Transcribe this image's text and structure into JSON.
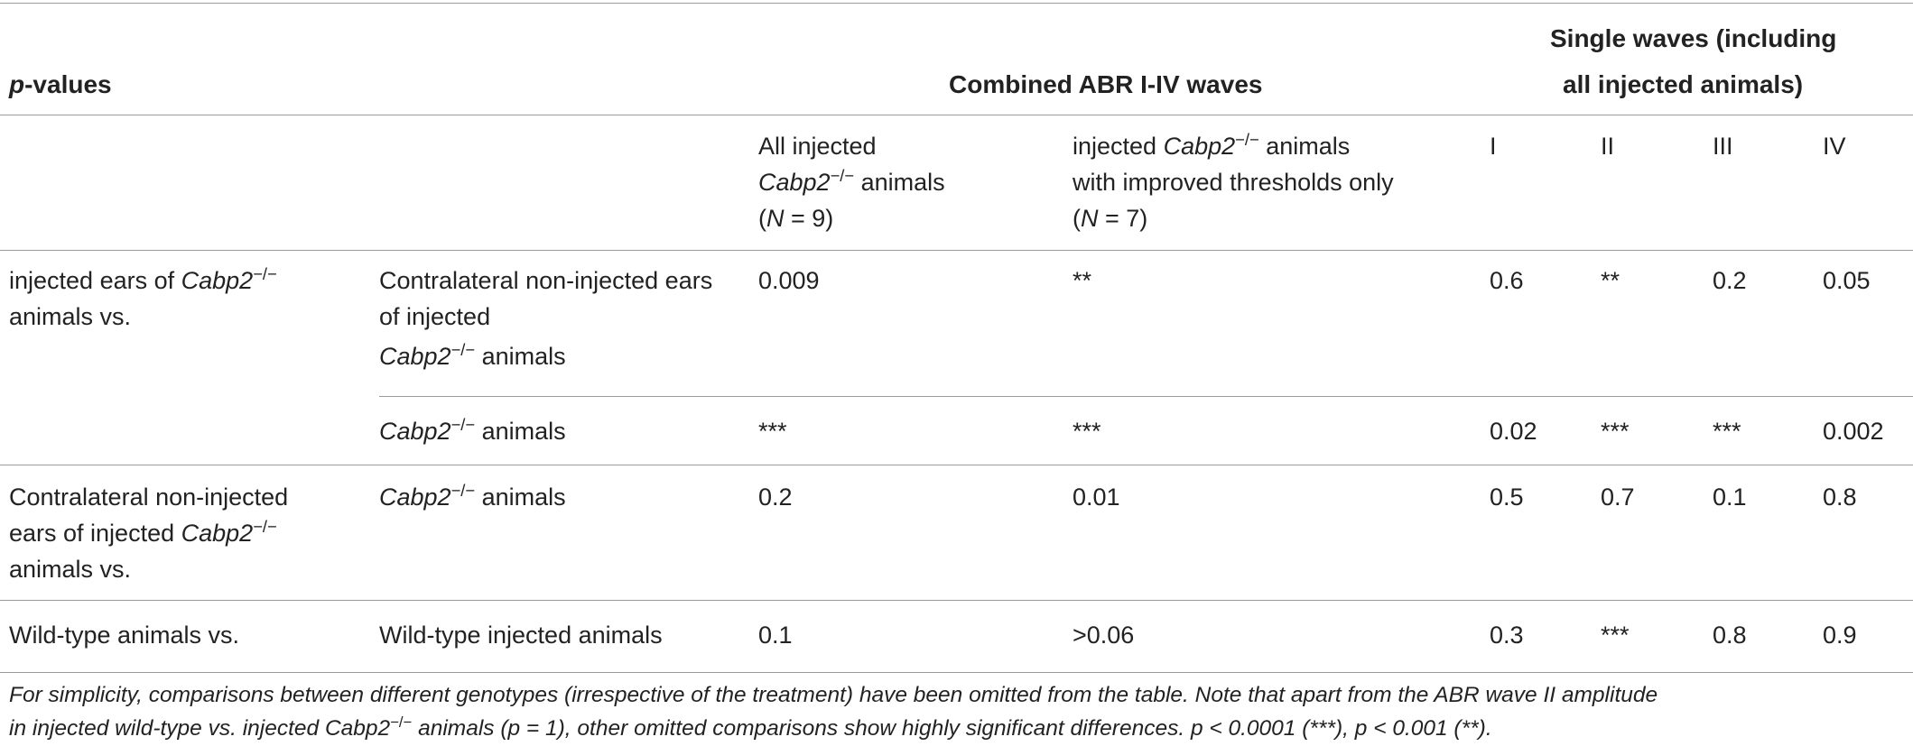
{
  "header": {
    "pvalues_italic": "p",
    "pvalues_rest": "-values",
    "combined": "Combined ABR I-IV waves",
    "single_line1": "Single waves (including",
    "single_line2": "all injected animals)"
  },
  "subheader": {
    "all_injected_l1": "All injected",
    "all_injected_l2_gene": "Cabp2",
    "all_injected_l2_sup": "−/−",
    "all_injected_l2_rest": " animals",
    "all_injected_l3_pre": "(",
    "all_injected_l3_N": "N",
    "all_injected_l3_post": " = 9)",
    "improved_l1_pre": "injected ",
    "improved_l1_gene": "Cabp2",
    "improved_l1_sup": "−/−",
    "improved_l1_rest": " animals",
    "improved_l2": "with improved thresholds only",
    "improved_l3_pre": "(",
    "improved_l3_N": "N",
    "improved_l3_post": " = 7)",
    "wave_I": "I",
    "wave_II": "II",
    "wave_III": "III",
    "wave_IV": "IV"
  },
  "group1": {
    "label_l1_pre": "injected ears of ",
    "label_l1_gene": "Cabp2",
    "label_l1_sup": "−/−",
    "label_l2": "animals vs.",
    "row1": {
      "comp_l1": "Contralateral non-injected ears",
      "comp_l2": "of injected",
      "comp_l3_gene": "Cabp2",
      "comp_l3_sup": "−/−",
      "comp_l3_rest": " animals",
      "all_injected": "0.009",
      "improved": "**",
      "I": "0.6",
      "II": "**",
      "III": "0.2",
      "IV": "0.05"
    },
    "row2": {
      "comp_gene": "Cabp2",
      "comp_sup": "−/−",
      "comp_rest": " animals",
      "all_injected": "***",
      "improved": "***",
      "I": "0.02",
      "II": "***",
      "III": "***",
      "IV": "0.002"
    }
  },
  "group2": {
    "label_l1": "Contralateral non-injected",
    "label_l2_pre": "ears of injected ",
    "label_l2_gene": "Cabp2",
    "label_l2_sup": "−/−",
    "label_l3": "animals vs.",
    "comp_gene": "Cabp2",
    "comp_sup": "−/−",
    "comp_rest": " animals",
    "all_injected": "0.2",
    "improved": "0.01",
    "I": "0.5",
    "II": "0.7",
    "III": "0.1",
    "IV": "0.8"
  },
  "group3": {
    "label": "Wild-type animals vs.",
    "comp": "Wild-type injected animals",
    "all_injected": "0.1",
    "improved": ">0.06",
    "I": "0.3",
    "II": "***",
    "III": "0.8",
    "IV": "0.9"
  },
  "footnote": {
    "line1": "For simplicity, comparisons between different genotypes (irrespective of the treatment) have been omitted from the table. Note that apart from the ABR wave II amplitude",
    "line2_pre": "in injected wild-type vs. injected ",
    "line2_gene": "Cabp2",
    "line2_sup": "−/−",
    "line2_rest": " animals (p = 1), other omitted comparisons show highly significant differences. p < 0.0001 (***), p < 0.001 (**)."
  }
}
